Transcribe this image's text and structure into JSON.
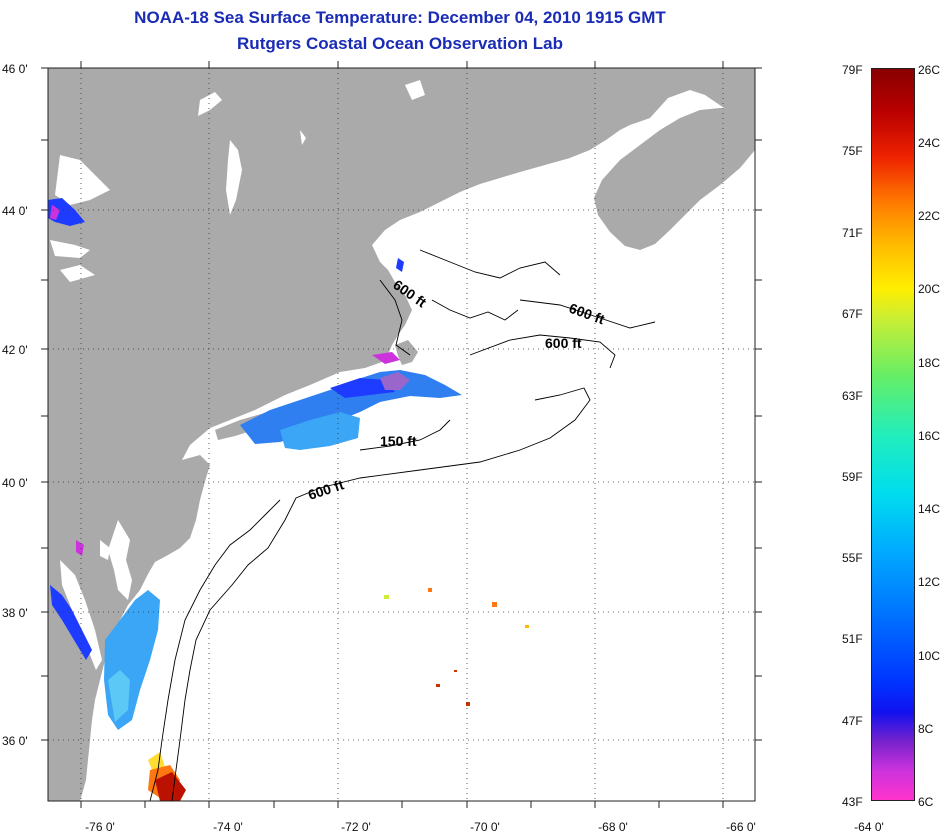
{
  "title": {
    "line1": "NOAA-18 Sea Surface Temperature:  December 04, 2010 1915 GMT",
    "line2": "Rutgers Coastal Ocean Observation Lab"
  },
  "axes": {
    "lat_labels": [
      "46 0'",
      "44 0'",
      "42 0'",
      "40 0'",
      "38 0'",
      "36 0'"
    ],
    "lon_labels": [
      "-76 0'",
      "-74 0'",
      "-72 0'",
      "-70 0'",
      "-68 0'",
      "-66 0'",
      "-64 0'"
    ]
  },
  "contours": {
    "label_600_ne": "600 ft",
    "label_600_gulf": "600 ft",
    "label_600_georges": "600 ft",
    "label_150": "150 ft",
    "label_600_south": "600 ft"
  },
  "colorbar": {
    "fahrenheit": [
      "79F",
      "75F",
      "71F",
      "67F",
      "63F",
      "59F",
      "55F",
      "51F",
      "47F",
      "43F"
    ],
    "celsius": [
      "26C",
      "24C",
      "22C",
      "20C",
      "18C",
      "16C",
      "14C",
      "12C",
      "10C",
      "8C",
      "6C"
    ]
  },
  "colors": {
    "land": "#aaaaaa",
    "water": "#ffffff",
    "title": "#1a2bb5"
  }
}
